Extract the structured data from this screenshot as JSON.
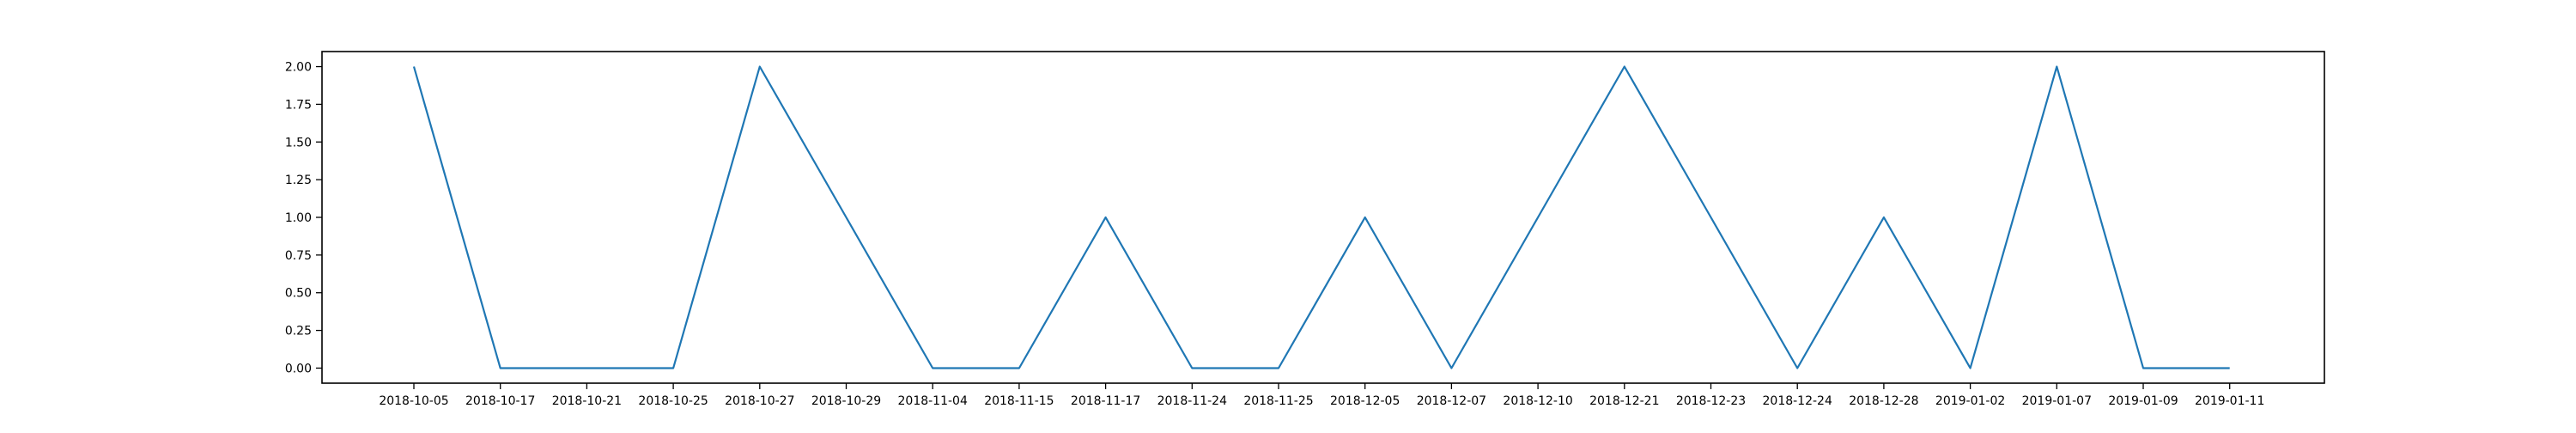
{
  "chart_data": {
    "type": "line",
    "title": "",
    "xlabel": "",
    "ylabel": "",
    "categories": [
      "2018-10-05",
      "2018-10-17",
      "2018-10-21",
      "2018-10-25",
      "2018-10-27",
      "2018-10-29",
      "2018-11-04",
      "2018-11-15",
      "2018-11-17",
      "2018-11-24",
      "2018-11-25",
      "2018-12-05",
      "2018-12-07",
      "2018-12-10",
      "2018-12-21",
      "2018-12-23",
      "2018-12-24",
      "2018-12-28",
      "2019-01-02",
      "2019-01-07",
      "2019-01-09",
      "2019-01-11"
    ],
    "series": [
      {
        "values": [
          2,
          0,
          0,
          0,
          2,
          1,
          0,
          0,
          1,
          0,
          0,
          1,
          0,
          1,
          2,
          1,
          0,
          1,
          0,
          2,
          0,
          0
        ]
      }
    ],
    "ylim": [
      -0.1,
      2.1
    ],
    "yticks": [
      "0.00",
      "0.25",
      "0.50",
      "0.75",
      "1.00",
      "1.25",
      "1.50",
      "1.75",
      "2.00"
    ],
    "grid": false,
    "legend": "none",
    "colors": {
      "line": "#1f77b4",
      "axes": "#000000",
      "background": "#ffffff"
    }
  }
}
